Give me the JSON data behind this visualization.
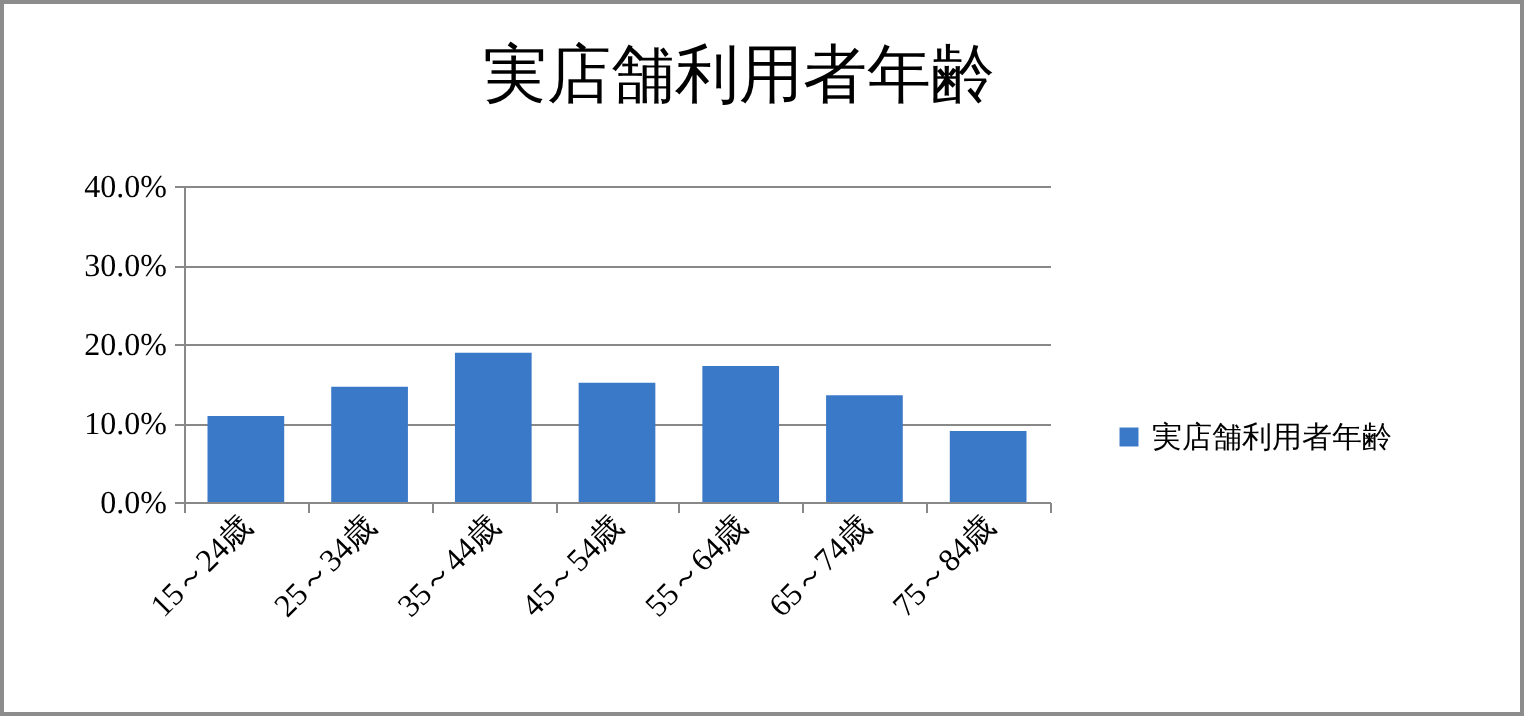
{
  "chart_data": {
    "type": "bar",
    "title": "実店舗利用者年齢",
    "categories": [
      "15～24歳",
      "25～34歳",
      "35～44歳",
      "45～54歳",
      "55～64歳",
      "65～74歳",
      "75～84歳"
    ],
    "series": [
      {
        "name": "実店舗利用者年齢",
        "color": "#3a78c8",
        "values": [
          10.9,
          14.6,
          18.9,
          15.1,
          17.2,
          13.5,
          9.0
        ]
      }
    ],
    "ylim": [
      0,
      40
    ],
    "yticks": [
      {
        "value": 0,
        "label": "0.0%"
      },
      {
        "value": 10,
        "label": "10.0%"
      },
      {
        "value": 20,
        "label": "20.0%"
      },
      {
        "value": 30,
        "label": "30.0%"
      },
      {
        "value": 40,
        "label": "40.0%"
      }
    ],
    "grid": "y",
    "legend": "right"
  }
}
